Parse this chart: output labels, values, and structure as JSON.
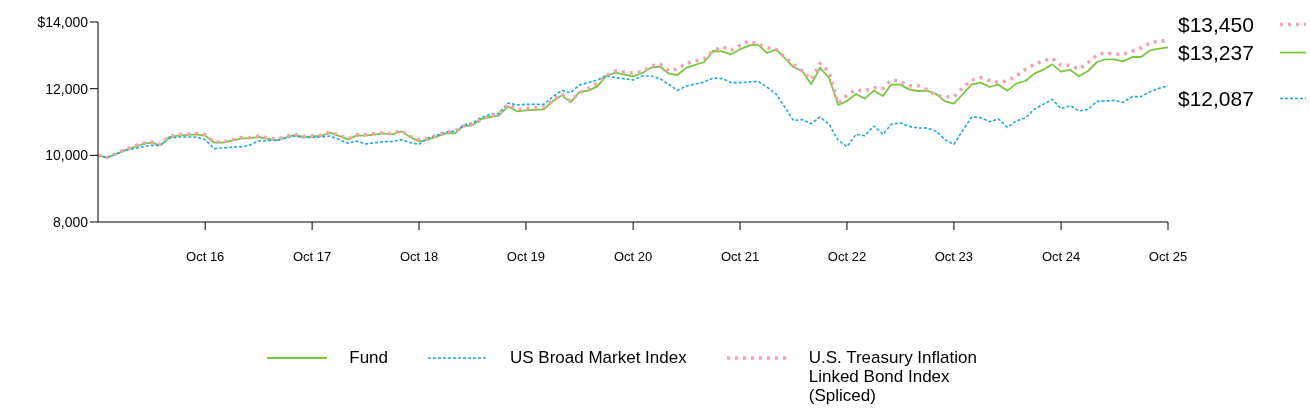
{
  "chart_data": {
    "type": "line",
    "x": [
      "2015-10",
      "2015-11",
      "2016-01",
      "2016-03",
      "2016-04",
      "2016-05",
      "2016-06",
      "2016-07",
      "2016-09",
      "2016-10",
      "2016-11",
      "2016-12",
      "2017-02",
      "2017-03",
      "2017-04",
      "2017-06",
      "2017-08",
      "2017-09",
      "2017-11",
      "2017-12",
      "2018-02",
      "2018-03",
      "2018-04",
      "2018-06",
      "2018-07",
      "2018-08",
      "2018-09",
      "2018-10",
      "2018-11",
      "2019-01",
      "2019-02",
      "2019-03",
      "2019-04",
      "2019-05",
      "2019-06",
      "2019-07",
      "2019-08",
      "2019-09",
      "2019-10",
      "2019-12",
      "2020-01",
      "2020-02",
      "2020-03",
      "2020-04",
      "2020-05",
      "2020-06",
      "2020-07",
      "2020-08",
      "2020-10",
      "2020-11",
      "2020-12",
      "2021-01",
      "2021-02",
      "2021-03",
      "2021-04",
      "2021-06",
      "2021-07",
      "2021-08",
      "2021-09",
      "2021-10",
      "2021-11",
      "2021-12",
      "2022-01",
      "2022-02",
      "2022-03",
      "2022-04",
      "2022-05",
      "2022-06",
      "2022-07",
      "2022-08",
      "2022-09",
      "2022-10",
      "2022-11",
      "2022-12",
      "2023-01",
      "2023-02",
      "2023-03",
      "2023-04",
      "2023-05",
      "2023-06",
      "2023-07",
      "2023-08",
      "2023-09",
      "2023-10",
      "2023-11",
      "2023-12",
      "2024-01",
      "2024-02",
      "2024-03",
      "2024-04",
      "2024-05",
      "2024-06",
      "2024-07",
      "2024-08",
      "2024-09",
      "2024-10",
      "2024-11",
      "2024-12",
      "2025-01",
      "2025-02",
      "2025-03",
      "2025-04",
      "2025-05",
      "2025-06",
      "2025-07",
      "2025-08",
      "2025-09",
      "2025-10"
    ],
    "series": [
      {
        "name": "Fund",
        "color": "#77c83a",
        "line_style": "solid",
        "values": [
          10000,
          9930,
          10150,
          10340,
          10380,
          10300,
          10550,
          10590,
          10630,
          10590,
          10380,
          10380,
          10510,
          10510,
          10550,
          10450,
          10610,
          10550,
          10580,
          10680,
          10480,
          10590,
          10590,
          10660,
          10630,
          10720,
          10550,
          10420,
          10470,
          10660,
          10660,
          10880,
          10900,
          11090,
          11150,
          11200,
          11470,
          11320,
          11350,
          11380,
          11630,
          11800,
          11590,
          11900,
          11940,
          12070,
          12380,
          12480,
          12370,
          12470,
          12630,
          12660,
          12450,
          12410,
          12630,
          12800,
          13130,
          13120,
          13030,
          13180,
          13300,
          13320,
          13070,
          13180,
          12930,
          12650,
          12530,
          12130,
          12630,
          12320,
          11510,
          11630,
          11840,
          11700,
          11940,
          11780,
          12120,
          12120,
          11980,
          11930,
          11940,
          11840,
          11620,
          11550,
          11840,
          12130,
          12180,
          12050,
          12120,
          11940,
          12150,
          12230,
          12450,
          12570,
          12730,
          12510,
          12570,
          12370,
          12530,
          12800,
          12880,
          12880,
          12820,
          12950,
          12950,
          13150,
          13200,
          13237
        ],
        "value_labels": [
          null,
          null,
          null,
          null,
          null,
          null,
          null,
          null,
          null,
          null,
          null,
          null,
          null,
          null,
          null,
          null,
          null,
          null,
          null,
          null,
          null,
          null,
          null,
          null,
          null,
          null,
          null,
          null,
          null,
          null,
          null,
          null,
          null,
          null,
          null,
          null,
          null,
          null,
          null,
          null,
          null,
          null,
          null,
          null,
          null,
          null,
          null,
          null,
          null,
          null,
          null,
          null,
          null,
          null,
          null,
          null,
          null,
          null,
          null,
          null,
          null,
          null,
          null,
          null,
          null,
          null,
          null,
          null,
          null,
          null,
          null,
          null,
          null,
          null,
          null,
          null,
          null,
          null,
          null,
          null,
          null,
          null,
          null,
          null,
          null,
          null,
          null,
          null,
          null,
          null,
          null,
          null,
          null,
          null,
          null,
          null,
          null,
          null,
          null,
          null,
          null,
          null,
          null,
          null,
          null,
          null,
          null,
          "$13,237"
        ]
      },
      {
        "name": "US Broad Market Index",
        "color": "#1ba8e0",
        "line_style": "dashed",
        "values": [
          10000,
          9930,
          10150,
          10260,
          10300,
          10300,
          10510,
          10550,
          10550,
          10470,
          10200,
          10220,
          10260,
          10300,
          10430,
          10450,
          10580,
          10530,
          10550,
          10580,
          10360,
          10430,
          10340,
          10410,
          10410,
          10470,
          10380,
          10330,
          10510,
          10700,
          10720,
          10900,
          10970,
          11130,
          11230,
          11260,
          11570,
          11510,
          11530,
          11530,
          11760,
          11950,
          11880,
          12110,
          12180,
          12260,
          12400,
          12330,
          12260,
          12380,
          12380,
          12300,
          12120,
          11950,
          12080,
          12200,
          12320,
          12300,
          12180,
          12180,
          12200,
          12220,
          12050,
          11840,
          11470,
          11050,
          11070,
          10950,
          11150,
          10930,
          10450,
          10260,
          10630,
          10590,
          10880,
          10630,
          10930,
          10970,
          10870,
          10820,
          10820,
          10730,
          10470,
          10330,
          10760,
          11150,
          11130,
          11010,
          11090,
          10840,
          11030,
          11120,
          11380,
          11530,
          11680,
          11400,
          11490,
          11330,
          11380,
          11620,
          11630,
          11650,
          11590,
          11760,
          11760,
          11910,
          12010,
          12087
        ],
        "value_labels": [
          null,
          null,
          null,
          null,
          null,
          null,
          null,
          null,
          null,
          null,
          null,
          null,
          null,
          null,
          null,
          null,
          null,
          null,
          null,
          null,
          null,
          null,
          null,
          null,
          null,
          null,
          null,
          null,
          null,
          null,
          null,
          null,
          null,
          null,
          null,
          null,
          null,
          null,
          null,
          null,
          null,
          null,
          null,
          null,
          null,
          null,
          null,
          null,
          null,
          null,
          null,
          null,
          null,
          null,
          null,
          null,
          null,
          null,
          null,
          null,
          null,
          null,
          null,
          null,
          null,
          null,
          null,
          null,
          null,
          null,
          null,
          null,
          null,
          null,
          null,
          null,
          null,
          null,
          null,
          null,
          null,
          null,
          null,
          null,
          null,
          null,
          null,
          null,
          null,
          null,
          null,
          null,
          null,
          null,
          null,
          null,
          null,
          null,
          null,
          null,
          null,
          null,
          null,
          null,
          null,
          null,
          null,
          "$12,087"
        ]
      },
      {
        "name": "U.S. Treasury Inflation Linked Bond Index (Spliced)",
        "color": "#f4a0b8",
        "line_style": "dotted",
        "values": [
          10000,
          9930,
          10170,
          10370,
          10400,
          10330,
          10570,
          10620,
          10650,
          10620,
          10400,
          10400,
          10530,
          10530,
          10570,
          10480,
          10630,
          10570,
          10600,
          10700,
          10500,
          10620,
          10620,
          10680,
          10650,
          10740,
          10570,
          10470,
          10500,
          10700,
          10720,
          10880,
          10930,
          11070,
          11180,
          11240,
          11530,
          11370,
          11400,
          11450,
          11650,
          11840,
          11630,
          11880,
          12000,
          12160,
          12400,
          12530,
          12470,
          12510,
          12680,
          12730,
          12530,
          12590,
          12760,
          12900,
          13130,
          13260,
          13160,
          13300,
          13430,
          13340,
          13230,
          13180,
          12950,
          12730,
          12530,
          12280,
          12760,
          12510,
          11550,
          11800,
          11970,
          11930,
          12030,
          12010,
          12260,
          12220,
          12090,
          12090,
          11970,
          11800,
          11760,
          11760,
          12030,
          12260,
          12330,
          12240,
          12190,
          12230,
          12380,
          12580,
          12730,
          12830,
          12910,
          12700,
          12700,
          12580,
          12780,
          13010,
          13080,
          13030,
          13030,
          13130,
          13220,
          13380,
          13420,
          13450
        ],
        "value_labels": [
          null,
          null,
          null,
          null,
          null,
          null,
          null,
          null,
          null,
          null,
          null,
          null,
          null,
          null,
          null,
          null,
          null,
          null,
          null,
          null,
          null,
          null,
          null,
          null,
          null,
          null,
          null,
          null,
          null,
          null,
          null,
          null,
          null,
          null,
          null,
          null,
          null,
          null,
          null,
          null,
          null,
          null,
          null,
          null,
          null,
          null,
          null,
          null,
          null,
          null,
          null,
          null,
          null,
          null,
          null,
          null,
          null,
          null,
          null,
          null,
          null,
          null,
          null,
          null,
          null,
          null,
          null,
          null,
          null,
          null,
          null,
          null,
          null,
          null,
          null,
          null,
          null,
          null,
          null,
          null,
          null,
          null,
          null,
          null,
          null,
          null,
          null,
          null,
          null,
          null,
          null,
          null,
          null,
          null,
          null,
          null,
          null,
          null,
          null,
          null,
          null,
          null,
          null,
          null,
          null,
          null,
          null,
          "$13,450"
        ]
      }
    ],
    "xlim": [
      "2015-10",
      "2025-10"
    ],
    "xticks": [
      {
        "value": "2016-10",
        "label": "Oct 16"
      },
      {
        "value": "2017-10",
        "label": "Oct 17"
      },
      {
        "value": "2018-10",
        "label": "Oct 18"
      },
      {
        "value": "2019-10",
        "label": "Oct 19"
      },
      {
        "value": "2020-10",
        "label": "Oct 20"
      },
      {
        "value": "2021-10",
        "label": "Oct 21"
      },
      {
        "value": "2022-10",
        "label": "Oct 22"
      },
      {
        "value": "2023-10",
        "label": "Oct 23"
      },
      {
        "value": "2024-10",
        "label": "Oct 24"
      },
      {
        "value": "2025-10",
        "label": "Oct 25"
      }
    ],
    "ylim": [
      8000,
      14000
    ],
    "yticks": [
      {
        "value": 8000,
        "label": "8,000"
      },
      {
        "value": 10000,
        "label": "10,000"
      },
      {
        "value": 12000,
        "label": "12,000"
      },
      {
        "value": 14000,
        "label": "$14,000"
      }
    ],
    "grid": false,
    "legend": "bottom",
    "marker": "none"
  }
}
